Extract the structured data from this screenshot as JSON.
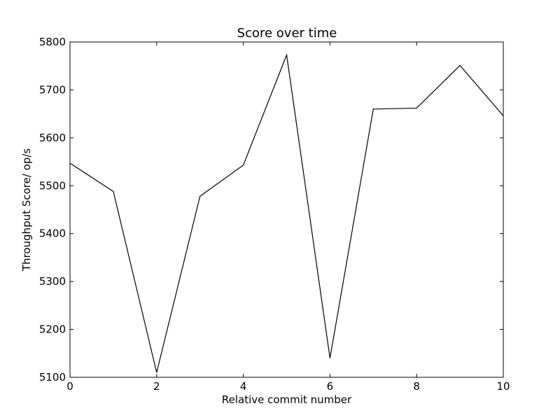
{
  "chart_data": {
    "type": "line",
    "title": "Score over time",
    "xlabel": "Relative commit number",
    "ylabel": "Throughput Score/ op/s",
    "xlim": [
      0,
      10
    ],
    "ylim": [
      5100,
      5800
    ],
    "xticks": [
      0,
      2,
      4,
      6,
      8,
      10
    ],
    "yticks": [
      5100,
      5200,
      5300,
      5400,
      5500,
      5600,
      5700,
      5800
    ],
    "grid": false,
    "line_color": "#000000",
    "series": [
      {
        "x": [
          0,
          1,
          2,
          3,
          4,
          5,
          6,
          7,
          8,
          9,
          10
        ],
        "y": [
          5547,
          5488,
          5110,
          5478,
          5543,
          5773,
          5140,
          5660,
          5662,
          5751,
          5646
        ]
      }
    ]
  }
}
